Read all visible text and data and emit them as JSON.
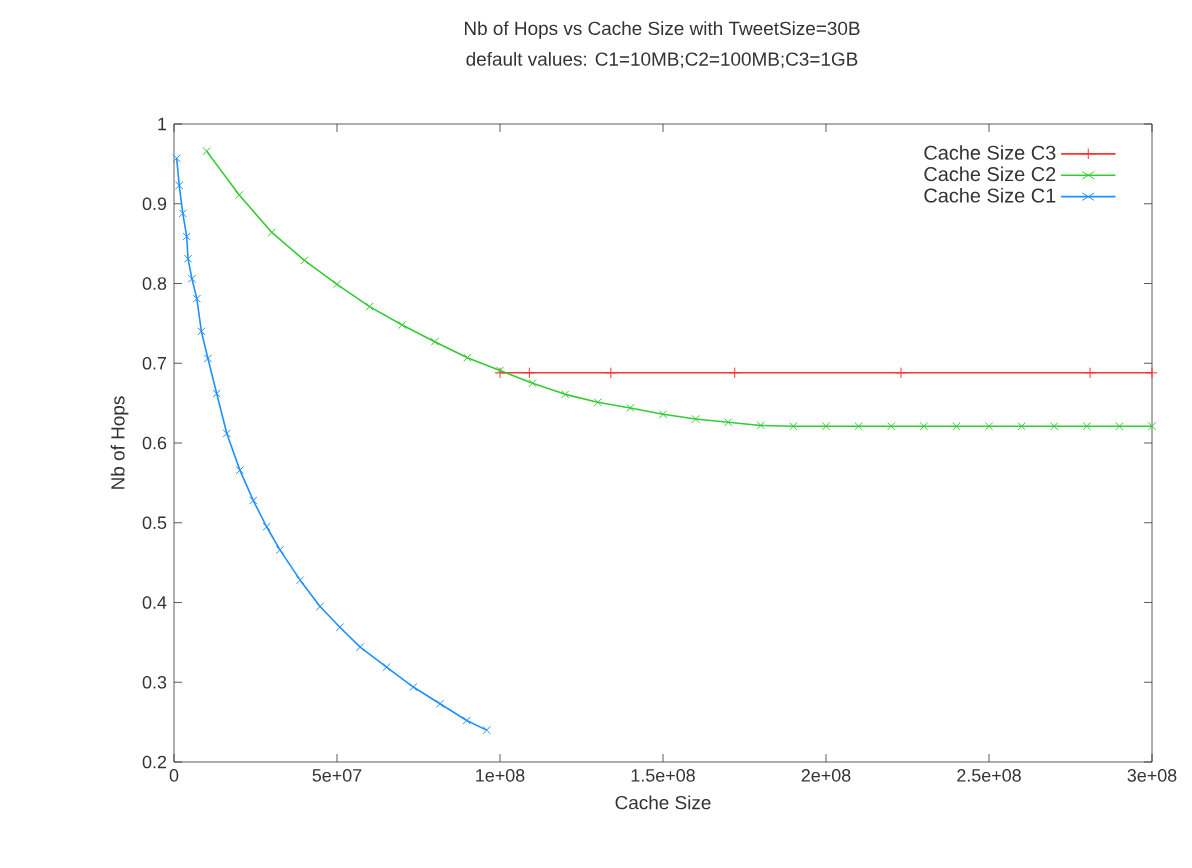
{
  "chart_data": {
    "type": "line",
    "title": "Nb of Hops vs Cache Size with TweetSize=30B",
    "subtitle": "default values: C1=10MB;C2=100MB;C3=1GB",
    "xlabel": "Cache Size",
    "ylabel": "Nb of Hops",
    "xlim": [
      0,
      300000000
    ],
    "ylim": [
      0.2,
      1
    ],
    "xticks": [
      0,
      {
        "value": 50000000,
        "label": "5e+07"
      },
      {
        "value": 100000000,
        "label": "1e+08"
      },
      {
        "value": 150000000,
        "label": "1.5e+08"
      },
      {
        "value": 200000000,
        "label": "2e+08"
      },
      {
        "value": 250000000,
        "label": "2.5e+08"
      },
      {
        "value": 300000000,
        "label": "3e+08"
      }
    ],
    "yticks": [
      0.2,
      0.3,
      0.4,
      0.5,
      0.6,
      0.7,
      0.8,
      0.9,
      1
    ],
    "grid": false,
    "legend": "top right",
    "series": [
      {
        "name": "Cache Size C3",
        "color": "#ff3333",
        "marker": "plus",
        "x": [
          100000000,
          109000000,
          134000000,
          172000000,
          223000000,
          281000000,
          300000000
        ],
        "values": [
          0.688,
          0.688,
          0.688,
          0.688,
          0.688,
          0.688,
          0.688
        ]
      },
      {
        "name": "Cache Size C2",
        "color": "#33cc33",
        "marker": "cross",
        "x": [
          10000000,
          20000000,
          30000000,
          40000000,
          50000000,
          60000000,
          70000000,
          80000000,
          90000000,
          100000000,
          110000000,
          120000000,
          130000000,
          140000000,
          150000000,
          160000000,
          170000000,
          180000000,
          190000000,
          200000000,
          210000000,
          220000000,
          230000000,
          240000000,
          250000000,
          260000000,
          270000000,
          280000000,
          290000000,
          300000000
        ],
        "values": [
          0.966,
          0.911,
          0.864,
          0.829,
          0.799,
          0.771,
          0.748,
          0.727,
          0.707,
          0.691,
          0.675,
          0.661,
          0.651,
          0.644,
          0.636,
          0.63,
          0.626,
          0.622,
          0.621,
          0.621,
          0.621,
          0.621,
          0.621,
          0.621,
          0.621,
          0.621,
          0.621,
          0.621,
          0.621,
          0.621
        ]
      },
      {
        "name": "Cache Size C1",
        "color": "#1e90ff",
        "marker": "cross",
        "x": [
          820000,
          1600000,
          2700000,
          3900000,
          4300000,
          5500000,
          7000000,
          8400000,
          10400000,
          13100000,
          16200000,
          20200000,
          24300000,
          28400000,
          32500000,
          38700000,
          44800000,
          50900000,
          57100000,
          65200000,
          73400000,
          81600000,
          89800000,
          95900000
        ],
        "values": [
          0.957,
          0.923,
          0.888,
          0.859,
          0.831,
          0.806,
          0.781,
          0.74,
          0.706,
          0.662,
          0.612,
          0.566,
          0.528,
          0.495,
          0.466,
          0.428,
          0.395,
          0.369,
          0.344,
          0.319,
          0.294,
          0.273,
          0.252,
          0.24
        ]
      }
    ]
  }
}
